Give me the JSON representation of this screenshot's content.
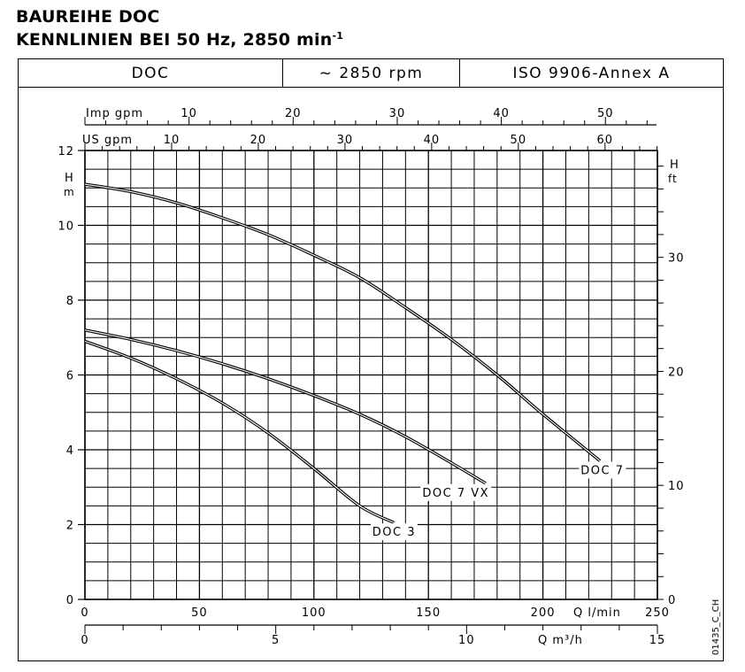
{
  "header": {
    "title_line1": "BAUREIHE DOC",
    "title_line2": "KENNLINIEN BEI 50 Hz, 2850 min",
    "title_line2_sup": "-1"
  },
  "spec_table": {
    "cells": [
      "DOC",
      "~ 2850 rpm",
      "ISO 9906-Annex A"
    ]
  },
  "drawing_code": "01435_C_CH",
  "chart_data": {
    "type": "line",
    "title": "BAUREIHE DOC — KENNLINIEN BEI 50 Hz, 2850 min-1",
    "xlabel": "Q l/min",
    "ylabel": "H m",
    "xlim": [
      0,
      250
    ],
    "ylim": [
      0,
      12
    ],
    "grid": true,
    "x_ticks": [
      0,
      50,
      100,
      150,
      200,
      250
    ],
    "y_ticks": [
      0,
      2,
      4,
      6,
      8,
      10,
      12
    ],
    "secondary_axes": {
      "x_bottom_2": {
        "label": "Q m³/h",
        "range": [
          0,
          15
        ],
        "tick_labels": [
          0,
          5,
          10,
          15
        ],
        "minor_step": 1
      },
      "x_top_1": {
        "label": "Imp gpm",
        "range": [
          0,
          55
        ],
        "tick_labels": [
          10,
          20,
          30,
          40,
          50
        ],
        "minor_step": 2
      },
      "x_top_2": {
        "label": "US gpm",
        "range": [
          0,
          66
        ],
        "tick_labels": [
          10,
          20,
          30,
          40,
          50,
          60
        ],
        "minor_step": 2
      },
      "y_right": {
        "label": "H ft",
        "range": [
          0,
          39.4
        ],
        "tick_labels": [
          0,
          10,
          20,
          30
        ],
        "minor_step": 2
      }
    },
    "series": [
      {
        "name": "DOC 7",
        "x": [
          0,
          20,
          40,
          60,
          80,
          100,
          120,
          140,
          160,
          180,
          200,
          225
        ],
        "y": [
          11.1,
          10.9,
          10.6,
          10.2,
          9.75,
          9.2,
          8.6,
          7.8,
          6.95,
          6.0,
          4.95,
          3.7
        ],
        "label_pos": {
          "q": 226,
          "h": 3.35
        }
      },
      {
        "name": "DOC 7 VX",
        "x": [
          0,
          20,
          40,
          60,
          80,
          100,
          120,
          140,
          160,
          175
        ],
        "y": [
          7.2,
          6.95,
          6.65,
          6.3,
          5.9,
          5.45,
          4.95,
          4.35,
          3.65,
          3.1
        ],
        "label_pos": {
          "q": 162,
          "h": 2.75
        }
      },
      {
        "name": "DOC 3",
        "x": [
          0,
          20,
          40,
          60,
          80,
          100,
          120,
          135
        ],
        "y": [
          6.9,
          6.45,
          5.9,
          5.25,
          4.45,
          3.5,
          2.5,
          2.05
        ],
        "label_pos": {
          "q": 135,
          "h": 1.7
        }
      }
    ]
  }
}
